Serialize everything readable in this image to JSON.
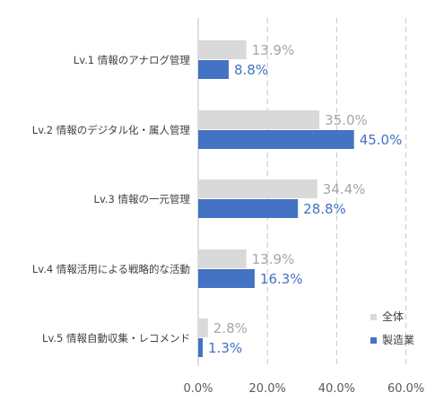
{
  "chart_data": {
    "type": "bar",
    "orientation": "horizontal",
    "categories": [
      "Lv.1 情報のアナログ管理",
      "Lv.2 情報のデジタル化・属人管理",
      "Lv.3 情報の一元管理",
      "Lv.4 情報活用による戦略的な活動",
      "Lv.5 情報自動収集・レコメンド"
    ],
    "series": [
      {
        "name": "全体",
        "values": [
          13.9,
          35.0,
          34.4,
          13.9,
          2.8
        ],
        "labels": [
          "13.9%",
          "35.0%",
          "34.4%",
          "13.9%",
          "2.8%"
        ],
        "color": "#d9d9d9",
        "label_color": "#a6a6a6"
      },
      {
        "name": "製造業",
        "values": [
          8.8,
          45.0,
          28.8,
          16.3,
          1.3
        ],
        "labels": [
          "8.8%",
          "45.0%",
          "28.8%",
          "16.3%",
          "1.3%"
        ],
        "color": "#4472c4",
        "label_color": "#4472c4"
      }
    ],
    "xlim": [
      0,
      60
    ],
    "xticks": [
      "0.0%",
      "20.0%",
      "40.0%",
      "60.0%"
    ],
    "grid": "vertical dashed",
    "legend_position": "bottom-right",
    "axis_color": "#bfbfbf",
    "gridline_color": "#c8c8c8"
  }
}
